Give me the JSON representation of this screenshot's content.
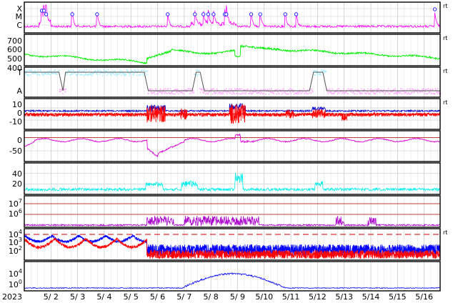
{
  "chart_data": {
    "type": "line",
    "x_axis": {
      "year_label": "2023",
      "tick_labels": [
        "5/ 2",
        "5/ 3",
        "5/ 4",
        "5/ 5",
        "5/ 6",
        "5/ 7",
        "5/ 8",
        "5/ 9",
        "5/10",
        "5/11",
        "5/12",
        "5/13",
        "5/14",
        "5/15",
        "5/16"
      ]
    },
    "panels": [
      {
        "id": "xray",
        "y_tick_labels": [
          "X",
          "M",
          "C"
        ],
        "right_label": "rt",
        "colors": {
          "line": "#ff00ff",
          "event": "#2222ff"
        },
        "flare_day_times": [
          1.66,
          1.74,
          1.82,
          2.8,
          3.73,
          6.38,
          7.4,
          7.72,
          7.9,
          8.1,
          8.52,
          8.58,
          9.51,
          9.85,
          10.79,
          11.2,
          16.4
        ],
        "baseline": 0.6
      },
      {
        "id": "solar-wind-speed",
        "y_tick_labels": [
          "700",
          "600",
          "500",
          "400"
        ],
        "right_label": "rt",
        "colors": {
          "line": "#00ee00"
        },
        "y_range": [
          350,
          750
        ]
      },
      {
        "id": "imf-sector",
        "y_tick_labels": [
          "T",
          "A"
        ],
        "right_label": "rt",
        "colors": {
          "t": "#aaeeff",
          "a": "#ffaaff",
          "line": "#555555"
        }
      },
      {
        "id": "imf-bz",
        "y_tick_labels": [
          "10",
          "0",
          "-10"
        ],
        "right_label": "rt",
        "colors": {
          "bt": "#0000cc",
          "bz": "#ff0000"
        },
        "y_range": [
          -25,
          25
        ]
      },
      {
        "id": "dst",
        "y_tick_labels": [
          "0",
          "-50"
        ],
        "colors": {
          "line": "#dd00dd",
          "zero": "#aa0000"
        },
        "y_range": [
          -90,
          25
        ]
      },
      {
        "id": "kp-index",
        "y_tick_labels": [
          "40",
          "20"
        ],
        "colors": {
          "line": "#00eeee"
        },
        "y_range": [
          0,
          60
        ]
      },
      {
        "id": "electron-flux",
        "y_tick_labels": [
          "10^7",
          "10^6"
        ],
        "colors": {
          "line": "#aa00cc",
          "threshold": "#aa0000"
        }
      },
      {
        "id": "proton-flux",
        "y_tick_labels": [
          "10^4",
          "10^3",
          "10^2"
        ],
        "right_label": "rt",
        "colors": {
          "p1": "#0000ff",
          "p2": "#ff0000",
          "threshold": "#cc0000"
        }
      },
      {
        "id": "neutron",
        "y_tick_labels": [
          "10^4",
          "10^0"
        ],
        "colors": {
          "line": "#0000ff"
        }
      }
    ]
  }
}
